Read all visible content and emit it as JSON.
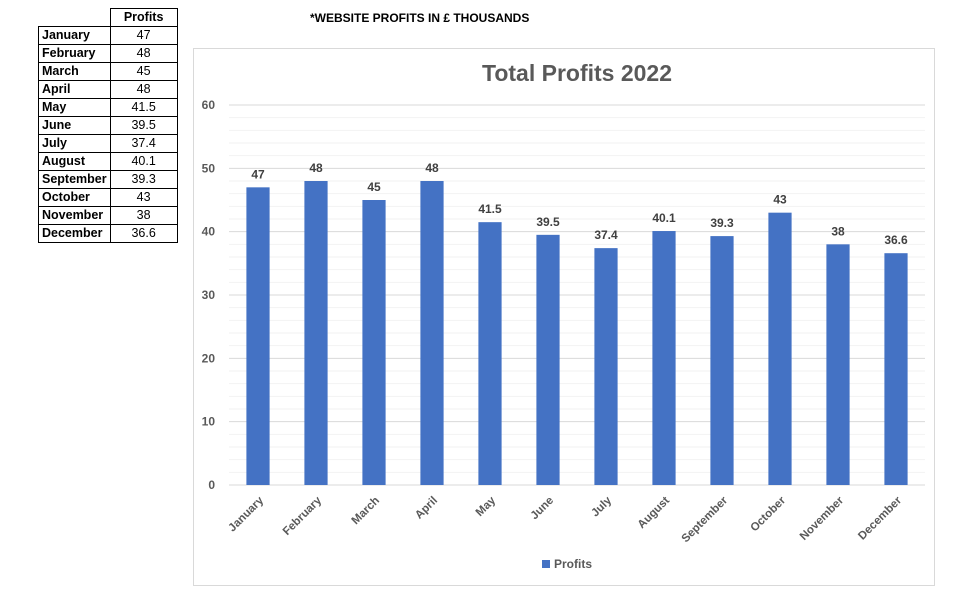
{
  "table": {
    "header": "Profits",
    "rows": [
      {
        "month": "January",
        "value": "47"
      },
      {
        "month": "February",
        "value": "48"
      },
      {
        "month": "March",
        "value": "45"
      },
      {
        "month": "April",
        "value": "48"
      },
      {
        "month": "May",
        "value": "41.5"
      },
      {
        "month": "June",
        "value": "39.5"
      },
      {
        "month": "July",
        "value": "37.4"
      },
      {
        "month": "August",
        "value": "40.1"
      },
      {
        "month": "September",
        "value": "39.3"
      },
      {
        "month": "October",
        "value": "43"
      },
      {
        "month": "November",
        "value": "38"
      },
      {
        "month": "December",
        "value": "36.6"
      }
    ]
  },
  "note": "*WEBSITE PROFITS IN £ THOUSANDS",
  "chart_data": {
    "type": "bar",
    "title": "Total Profits 2022",
    "categories": [
      "January",
      "February",
      "March",
      "April",
      "May",
      "June",
      "July",
      "August",
      "September",
      "October",
      "November",
      "December"
    ],
    "series": [
      {
        "name": "Profits",
        "values": [
          47,
          48,
          45,
          48,
          41.5,
          39.5,
          37.4,
          40.1,
          39.3,
          43,
          38,
          36.6
        ],
        "color": "#4472c4"
      }
    ],
    "ylim": [
      0,
      60
    ],
    "yticks": [
      0,
      10,
      20,
      30,
      40,
      50,
      60
    ],
    "grid": true,
    "minor_grid": true,
    "data_labels": true,
    "legend": "bottom",
    "xlabel": "",
    "ylabel": ""
  }
}
